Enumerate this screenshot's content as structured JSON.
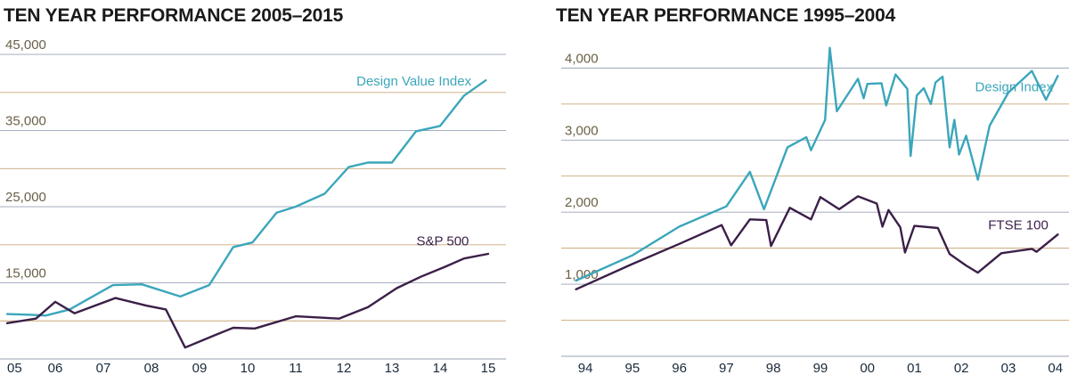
{
  "colors": {
    "teal": "#3ba6bb",
    "purple": "#3b1f48",
    "grid": "#9aa2b6",
    "grid_alt": "#c9a87a",
    "tick_text": "#6b6048",
    "axis_text": "#1a2a3a"
  },
  "chart_data": [
    {
      "type": "line",
      "title": "TEN YEAR PERFORMANCE 2005–2015",
      "xlabel": "",
      "ylabel": "",
      "xlim": [
        2005,
        2015
      ],
      "ylim": [
        5000,
        47000
      ],
      "x_ticks": [
        {
          "value": 2005,
          "label": "05"
        },
        {
          "value": 2006,
          "label": "06"
        },
        {
          "value": 2007,
          "label": "07"
        },
        {
          "value": 2008,
          "label": "08"
        },
        {
          "value": 2009,
          "label": "09"
        },
        {
          "value": 2010,
          "label": "10"
        },
        {
          "value": 2011,
          "label": "11"
        },
        {
          "value": 2012,
          "label": "12"
        },
        {
          "value": 2013,
          "label": "13"
        },
        {
          "value": 2014,
          "label": "14"
        },
        {
          "value": 2015,
          "label": "15"
        }
      ],
      "y_ticks": [
        {
          "value": 45000,
          "label": "45,000"
        },
        {
          "value": 35000,
          "label": "35,000"
        },
        {
          "value": 25000,
          "label": "25,000"
        },
        {
          "value": 15000,
          "label": "15,000"
        }
      ],
      "gridlines": [
        45000,
        40000,
        35000,
        30000,
        25000,
        20000,
        15000,
        10000,
        5000
      ],
      "grid": true,
      "series": [
        {
          "name": "Design Value Index",
          "color": "#3ba6bb",
          "label_at": [
            2014.65,
            40900
          ],
          "points": [
            [
              2005.0,
              10900
            ],
            [
              2005.5,
              10800
            ],
            [
              2005.8,
              10700
            ],
            [
              2006.3,
              11500
            ],
            [
              2007.2,
              14700
            ],
            [
              2007.8,
              14800
            ],
            [
              2008.6,
              13200
            ],
            [
              2009.2,
              14700
            ],
            [
              2009.7,
              19700
            ],
            [
              2010.1,
              20300
            ],
            [
              2010.6,
              24200
            ],
            [
              2011.0,
              25000
            ],
            [
              2011.6,
              26700
            ],
            [
              2012.1,
              30200
            ],
            [
              2012.5,
              30800
            ],
            [
              2013.0,
              30800
            ],
            [
              2013.5,
              34900
            ],
            [
              2014.0,
              35600
            ],
            [
              2014.5,
              39600
            ],
            [
              2014.95,
              41600
            ]
          ]
        },
        {
          "name": "S&P 500",
          "color": "#3b1f48",
          "label_at": [
            2014.6,
            19900
          ],
          "points": [
            [
              2005.0,
              9700
            ],
            [
              2005.6,
              10300
            ],
            [
              2006.0,
              12500
            ],
            [
              2006.4,
              11000
            ],
            [
              2007.25,
              13000
            ],
            [
              2007.9,
              12000
            ],
            [
              2008.3,
              11500
            ],
            [
              2008.7,
              6500
            ],
            [
              2009.35,
              8200
            ],
            [
              2009.7,
              9100
            ],
            [
              2010.15,
              9000
            ],
            [
              2011.0,
              10600
            ],
            [
              2011.9,
              10300
            ],
            [
              2012.5,
              11800
            ],
            [
              2013.1,
              14300
            ],
            [
              2013.6,
              15800
            ],
            [
              2014.1,
              17100
            ],
            [
              2014.5,
              18200
            ],
            [
              2015.0,
              18800
            ]
          ]
        }
      ]
    },
    {
      "type": "line",
      "title": "TEN YEAR PERFORMANCE 1995–2004",
      "xlabel": "",
      "ylabel": "",
      "xlim": [
        1993.6,
        2004.1
      ],
      "ylim": [
        0,
        4400
      ],
      "x_ticks": [
        {
          "value": 1994,
          "label": "94"
        },
        {
          "value": 1995,
          "label": "95"
        },
        {
          "value": 1996,
          "label": "96"
        },
        {
          "value": 1997,
          "label": "97"
        },
        {
          "value": 1998,
          "label": "98"
        },
        {
          "value": 1999,
          "label": "99"
        },
        {
          "value": 2000,
          "label": "00"
        },
        {
          "value": 2001,
          "label": "01"
        },
        {
          "value": 2002,
          "label": "02"
        },
        {
          "value": 2003,
          "label": "03"
        },
        {
          "value": 2004,
          "label": "04"
        }
      ],
      "y_ticks": [
        {
          "value": 4000,
          "label": "4,000"
        },
        {
          "value": 3000,
          "label": "3,000"
        },
        {
          "value": 2000,
          "label": "2,000"
        },
        {
          "value": 1000,
          "label": "1,000"
        }
      ],
      "gridlines": [
        4000,
        3500,
        3000,
        2500,
        2000,
        1500,
        1000,
        500
      ],
      "grid": true,
      "series": [
        {
          "name": "Design Index",
          "color": "#3ba6bb",
          "label_at": [
            2003.95,
            3680
          ],
          "points": [
            [
              1993.8,
              1050
            ],
            [
              1995.0,
              1400
            ],
            [
              1996.0,
              1800
            ],
            [
              1997.0,
              2080
            ],
            [
              1997.5,
              2560
            ],
            [
              1997.8,
              2040
            ],
            [
              1998.3,
              2900
            ],
            [
              1998.7,
              3040
            ],
            [
              1998.8,
              2860
            ],
            [
              1999.1,
              3280
            ],
            [
              1999.2,
              4280
            ],
            [
              1999.35,
              3400
            ],
            [
              1999.8,
              3850
            ],
            [
              1999.92,
              3580
            ],
            [
              2000.0,
              3780
            ],
            [
              2000.3,
              3790
            ],
            [
              2000.4,
              3480
            ],
            [
              2000.6,
              3910
            ],
            [
              2000.85,
              3710
            ],
            [
              2000.92,
              2780
            ],
            [
              2001.05,
              3620
            ],
            [
              2001.2,
              3720
            ],
            [
              2001.35,
              3500
            ],
            [
              2001.45,
              3800
            ],
            [
              2001.6,
              3880
            ],
            [
              2001.75,
              2900
            ],
            [
              2001.85,
              3280
            ],
            [
              2001.95,
              2800
            ],
            [
              2002.1,
              3060
            ],
            [
              2002.35,
              2450
            ],
            [
              2002.6,
              3200
            ],
            [
              2003.0,
              3660
            ],
            [
              2003.5,
              3960
            ],
            [
              2003.8,
              3560
            ],
            [
              2004.05,
              3890
            ]
          ]
        },
        {
          "name": "FTSE 100",
          "color": "#3b1f48",
          "label_at": [
            2003.85,
            1760
          ],
          "points": [
            [
              1993.8,
              930
            ],
            [
              1995.0,
              1280
            ],
            [
              1996.0,
              1560
            ],
            [
              1996.9,
              1820
            ],
            [
              1997.1,
              1540
            ],
            [
              1997.5,
              1900
            ],
            [
              1997.85,
              1890
            ],
            [
              1997.95,
              1530
            ],
            [
              1998.35,
              2060
            ],
            [
              1998.8,
              1900
            ],
            [
              1999.0,
              2210
            ],
            [
              1999.4,
              2040
            ],
            [
              1999.8,
              2220
            ],
            [
              2000.2,
              2120
            ],
            [
              2000.32,
              1800
            ],
            [
              2000.45,
              2030
            ],
            [
              2000.7,
              1790
            ],
            [
              2000.8,
              1440
            ],
            [
              2001.0,
              1810
            ],
            [
              2001.5,
              1780
            ],
            [
              2001.75,
              1420
            ],
            [
              2002.1,
              1260
            ],
            [
              2002.35,
              1160
            ],
            [
              2002.85,
              1430
            ],
            [
              2003.5,
              1490
            ],
            [
              2003.6,
              1450
            ],
            [
              2004.05,
              1690
            ]
          ]
        }
      ]
    }
  ]
}
